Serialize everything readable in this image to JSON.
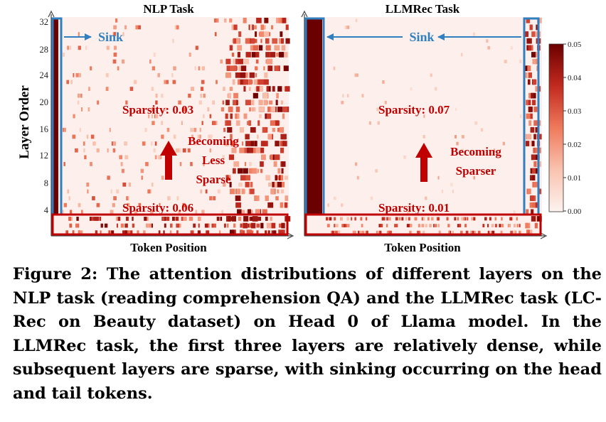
{
  "figure": {
    "panels": [
      {
        "title": "NLP Task",
        "sink_label": "Sink",
        "annotations": {
          "sparsity_upper": "Sparsity: 0.03",
          "sparsity_lower": "Sparsity: 0.06",
          "trend_line1": "Becoming",
          "trend_line2": "Less",
          "trend_line3": "Sparse"
        }
      },
      {
        "title": "LLMRec Task",
        "sink_label": "Sink",
        "annotations": {
          "sparsity_upper": "Sparsity: 0.07",
          "sparsity_lower": "Sparsity: 0.01",
          "trend_line1": "Becoming",
          "trend_line2": "Sparser"
        }
      }
    ],
    "y_axis_label": "Layer Order",
    "y_ticks": [
      "32",
      "28",
      "24",
      "20",
      "16",
      "12",
      "8",
      "4"
    ],
    "x_axis_label": "Token Position",
    "colorbar_ticks": [
      "0.05",
      "0.04",
      "0.03",
      "0.02",
      "0.01",
      "0.00"
    ]
  },
  "colors": {
    "heat_low": "#fdf0ec",
    "heat_high": "#6b0000",
    "sink_box": "#2f7fc1",
    "dense_box": "#c00000",
    "annotation_text": "#c00000"
  },
  "caption": "Figure 2: The attention distributions of different layers on the NLP task (reading comprehension QA) and the LLMRec task (LC-Rec on Beauty dataset) on Head 0 of Llama model. In the LLMRec task, the first three layers are relatively dense, while subsequent layers are sparse, with sinking occurring on the head and tail tokens."
}
